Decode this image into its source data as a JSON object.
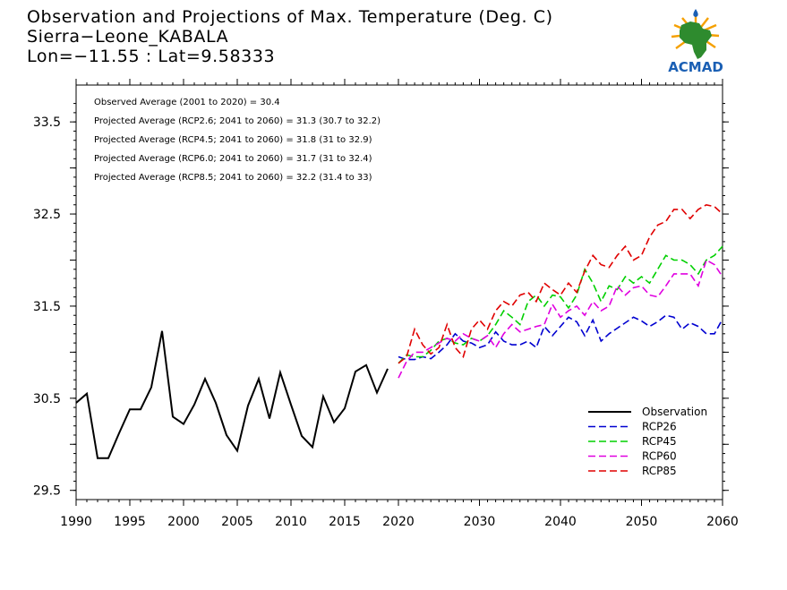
{
  "title": {
    "line1": "Observation and Projections of Max. Temperature (Deg. C)",
    "line2": "Sierra−Leone_KABALA",
    "line3": "Lon=−11.55 : Lat=9.58333"
  },
  "logo": {
    "text": "ACMAD"
  },
  "annotations": [
    "Observed Average (2001 to 2020) = 30.4",
    "Projected Average (RCP2.6; 2041 to 2060) = 31.3 (30.7 to 32.2)",
    "Projected Average (RCP4.5; 2041 to 2060) = 31.8 (31 to 32.9)",
    "Projected Average (RCP6.0; 2041 to 2060) = 31.7 (31 to 32.4)",
    "Projected Average (RCP8.5; 2041 to 2060) = 32.2 (31.4 to 33)"
  ],
  "chart_data": {
    "type": "line",
    "title": "Observation and Projections of Max. Temperature (Deg. C)",
    "xlabel": "",
    "ylabel": "",
    "xlim": [
      1990,
      2060
    ],
    "ylim": [
      29.4,
      33.9
    ],
    "x_ticks_left": [
      1990,
      1995,
      2000,
      2005,
      2010,
      2015,
      2020
    ],
    "x_ticks_right": [
      2030,
      2040,
      2050,
      2060
    ],
    "y_ticks": [
      29.5,
      30.5,
      31.5,
      32.5,
      33.5
    ],
    "y_tick_labels": [
      "29.5",
      "30.5",
      "31.5",
      "32.5",
      "33.5"
    ],
    "grid": false,
    "legend_position": "bottom-right",
    "series": [
      {
        "name": "Observation",
        "color": "#000000",
        "dash": "solid",
        "x": [
          1990,
          1991,
          1992,
          1993,
          1994,
          1995,
          1996,
          1997,
          1998,
          1999,
          2000,
          2001,
          2002,
          2003,
          2004,
          2005,
          2006,
          2007,
          2008,
          2009,
          2010,
          2011,
          2012,
          2013,
          2014,
          2015,
          2016,
          2017,
          2018,
          2019
        ],
        "values": [
          30.45,
          30.55,
          29.85,
          29.85,
          30.12,
          30.38,
          30.38,
          30.62,
          31.23,
          30.3,
          30.22,
          30.43,
          30.71,
          30.45,
          30.1,
          29.93,
          30.42,
          30.71,
          30.28,
          30.78,
          30.43,
          30.09,
          29.97,
          30.52,
          30.24,
          30.39,
          30.79,
          30.86,
          30.56,
          30.82
        ]
      },
      {
        "name": "RCP26",
        "color": "#0000d0",
        "dash": "dashed",
        "x": [
          2020,
          2021,
          2022,
          2023,
          2024,
          2025,
          2026,
          2027,
          2028,
          2029,
          2030,
          2031,
          2032,
          2033,
          2034,
          2035,
          2036,
          2037,
          2038,
          2039,
          2040,
          2041,
          2042,
          2043,
          2044,
          2045,
          2046,
          2047,
          2048,
          2049,
          2050,
          2051,
          2052,
          2053,
          2054,
          2055,
          2056,
          2057,
          2058,
          2059,
          2060
        ],
        "values": [
          30.95,
          30.92,
          30.92,
          30.95,
          30.93,
          31.0,
          31.08,
          31.2,
          31.12,
          31.1,
          31.05,
          31.08,
          31.22,
          31.12,
          31.08,
          31.08,
          31.12,
          31.05,
          31.28,
          31.18,
          31.28,
          31.38,
          31.33,
          31.18,
          31.35,
          31.12,
          31.2,
          31.26,
          31.32,
          31.38,
          31.34,
          31.28,
          31.33,
          31.4,
          31.38,
          31.25,
          31.32,
          31.28,
          31.2,
          31.2,
          31.36
        ]
      },
      {
        "name": "RCP45",
        "color": "#00d000",
        "dash": "dashed",
        "x": [
          2020,
          2021,
          2022,
          2023,
          2024,
          2025,
          2026,
          2027,
          2028,
          2029,
          2030,
          2031,
          2032,
          2033,
          2034,
          2035,
          2036,
          2037,
          2038,
          2039,
          2040,
          2041,
          2042,
          2043,
          2044,
          2045,
          2046,
          2047,
          2048,
          2049,
          2050,
          2051,
          2052,
          2053,
          2054,
          2055,
          2056,
          2057,
          2058,
          2059,
          2060
        ],
        "values": [
          30.88,
          30.97,
          30.95,
          30.95,
          31.02,
          31.12,
          31.15,
          31.1,
          31.08,
          31.15,
          31.12,
          31.18,
          31.3,
          31.45,
          31.38,
          31.3,
          31.55,
          31.62,
          31.5,
          31.62,
          31.6,
          31.48,
          31.62,
          31.9,
          31.75,
          31.55,
          31.72,
          31.68,
          31.82,
          31.75,
          31.82,
          31.75,
          31.9,
          32.05,
          32.0,
          32.0,
          31.95,
          31.85,
          32.0,
          32.05,
          32.15
        ]
      },
      {
        "name": "RCP60",
        "color": "#e000e0",
        "dash": "dashed",
        "x": [
          2020,
          2021,
          2022,
          2023,
          2024,
          2025,
          2026,
          2027,
          2028,
          2029,
          2030,
          2031,
          2032,
          2033,
          2034,
          2035,
          2036,
          2037,
          2038,
          2039,
          2040,
          2041,
          2042,
          2043,
          2044,
          2045,
          2046,
          2047,
          2048,
          2049,
          2050,
          2051,
          2052,
          2053,
          2054,
          2055,
          2056,
          2057,
          2058,
          2059,
          2060
        ],
        "values": [
          30.72,
          30.9,
          31.0,
          31.0,
          31.05,
          31.1,
          31.15,
          31.12,
          31.2,
          31.15,
          31.12,
          31.18,
          31.05,
          31.2,
          31.3,
          31.22,
          31.25,
          31.28,
          31.3,
          31.52,
          31.38,
          31.45,
          31.5,
          31.4,
          31.55,
          31.45,
          31.5,
          31.72,
          31.62,
          31.7,
          31.72,
          31.62,
          31.6,
          31.72,
          31.85,
          31.85,
          31.85,
          31.72,
          32.0,
          31.95,
          31.82
        ]
      },
      {
        "name": "RCP85",
        "color": "#e00000",
        "dash": "dashed",
        "x": [
          2020,
          2021,
          2022,
          2023,
          2024,
          2025,
          2026,
          2027,
          2028,
          2029,
          2030,
          2031,
          2032,
          2033,
          2034,
          2035,
          2036,
          2037,
          2038,
          2039,
          2040,
          2041,
          2042,
          2043,
          2044,
          2045,
          2046,
          2047,
          2048,
          2049,
          2050,
          2051,
          2052,
          2053,
          2054,
          2055,
          2056,
          2057,
          2058,
          2059,
          2060
        ],
        "values": [
          30.88,
          30.95,
          31.25,
          31.08,
          30.98,
          31.05,
          31.3,
          31.05,
          30.95,
          31.25,
          31.35,
          31.25,
          31.45,
          31.55,
          31.5,
          31.62,
          31.65,
          31.55,
          31.75,
          31.68,
          31.62,
          31.75,
          31.65,
          31.88,
          32.05,
          31.95,
          31.92,
          32.05,
          32.15,
          32.0,
          32.05,
          32.25,
          32.38,
          32.42,
          32.55,
          32.55,
          32.45,
          32.55,
          32.6,
          32.58,
          32.5
        ]
      }
    ]
  }
}
